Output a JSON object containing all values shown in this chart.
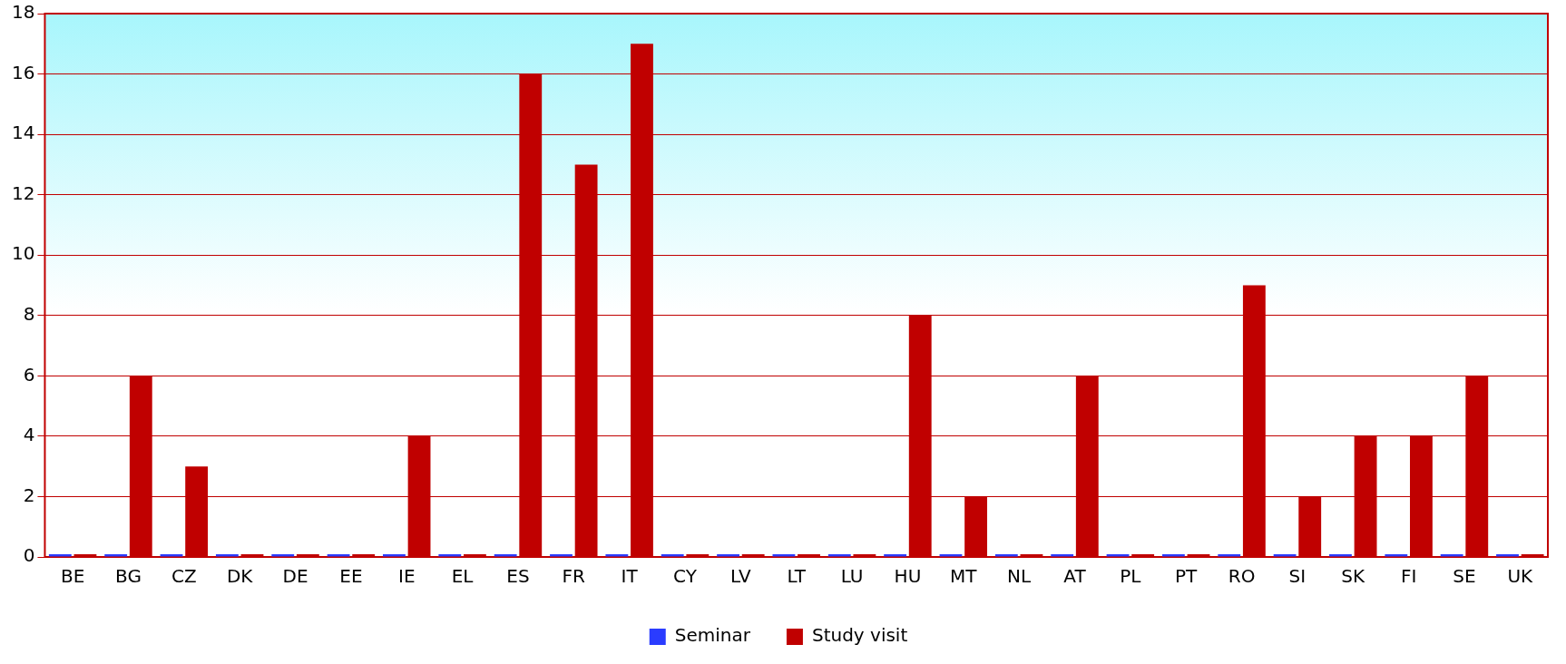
{
  "chart_data": {
    "type": "bar",
    "categories": [
      "BE",
      "BG",
      "CZ",
      "DK",
      "DE",
      "EE",
      "IE",
      "EL",
      "ES",
      "FR",
      "IT",
      "CY",
      "LV",
      "LT",
      "LU",
      "HU",
      "MT",
      "NL",
      "AT",
      "PL",
      "PT",
      "RO",
      "SI",
      "SK",
      "FI",
      "SE",
      "UK"
    ],
    "series": [
      {
        "name": "Seminar",
        "color": "#2a3cff",
        "values": [
          0,
          0,
          0,
          0,
          0,
          0,
          0,
          0,
          0,
          0,
          0,
          0,
          0,
          0,
          0,
          0,
          0,
          0,
          0,
          0,
          0,
          0,
          0,
          0,
          0,
          0,
          0
        ]
      },
      {
        "name": "Study visit",
        "color": "#c00000",
        "values": [
          0,
          6,
          3,
          0,
          0,
          0,
          4,
          0,
          16,
          13,
          17,
          0,
          0,
          0,
          0,
          8,
          2,
          0,
          6,
          0,
          0,
          9,
          2,
          4,
          4,
          6,
          0
        ]
      }
    ],
    "ylim": [
      0,
      18
    ],
    "yticks": [
      0,
      2,
      4,
      6,
      8,
      10,
      12,
      14,
      16,
      18
    ],
    "grid": "y",
    "legend": "bottom"
  }
}
